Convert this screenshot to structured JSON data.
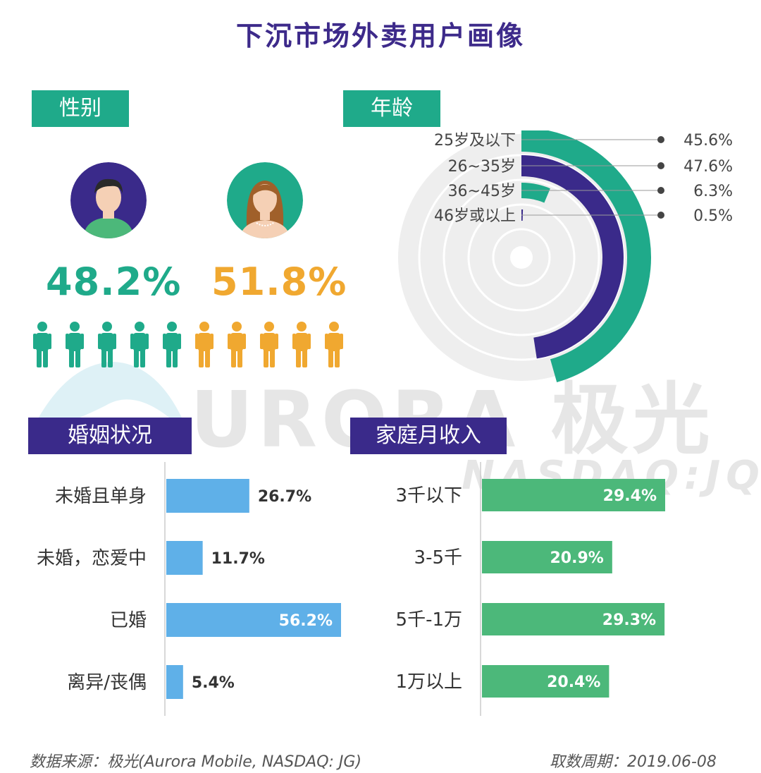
{
  "title": "下沉市场外卖用户画像",
  "sections": {
    "gender": "性别",
    "age": "年龄",
    "marital": "婚姻状况",
    "income": "家庭月收入"
  },
  "gender": {
    "male_pct": "48.2%",
    "female_pct": "51.8%",
    "male_color": "#1faa8a",
    "female_color": "#f0a830"
  },
  "watermark": {
    "main": "URORA 极光",
    "sub": "NASDAQ:JQ"
  },
  "footer": {
    "source": "数据来源：极光(Aurora Mobile, NASDAQ: JG)",
    "date": "取数周期：2019.06-08"
  },
  "chart_data": [
    {
      "type": "pie",
      "variant": "radial-bar",
      "categories": [
        "25岁及以下",
        "26~35岁",
        "36~45岁",
        "46岁或以上"
      ],
      "values": [
        45.6,
        47.6,
        6.3,
        0.5
      ],
      "labels": [
        "45.6%",
        "47.6%",
        "6.3%",
        "0.5%"
      ],
      "colors": [
        "#1faa8a",
        "#3a2a8a",
        "#1faa8a",
        "#3a2a8a"
      ]
    },
    {
      "type": "bar",
      "orientation": "horizontal",
      "categories": [
        "未婚且单身",
        "未婚，恋爱中",
        "已婚",
        "离异/丧偶"
      ],
      "values": [
        26.7,
        11.7,
        56.2,
        5.4
      ],
      "labels": [
        "26.7%",
        "11.7%",
        "56.2%",
        "5.4%"
      ],
      "color": "#5fb0e8"
    },
    {
      "type": "bar",
      "orientation": "horizontal",
      "categories": [
        "3千以下",
        "3-5千",
        "5千-1万",
        "1万以上"
      ],
      "values": [
        29.4,
        20.9,
        29.3,
        20.4
      ],
      "labels": [
        "29.4%",
        "20.9%",
        "29.3%",
        "20.4%"
      ],
      "color": "#4cb87a"
    }
  ]
}
